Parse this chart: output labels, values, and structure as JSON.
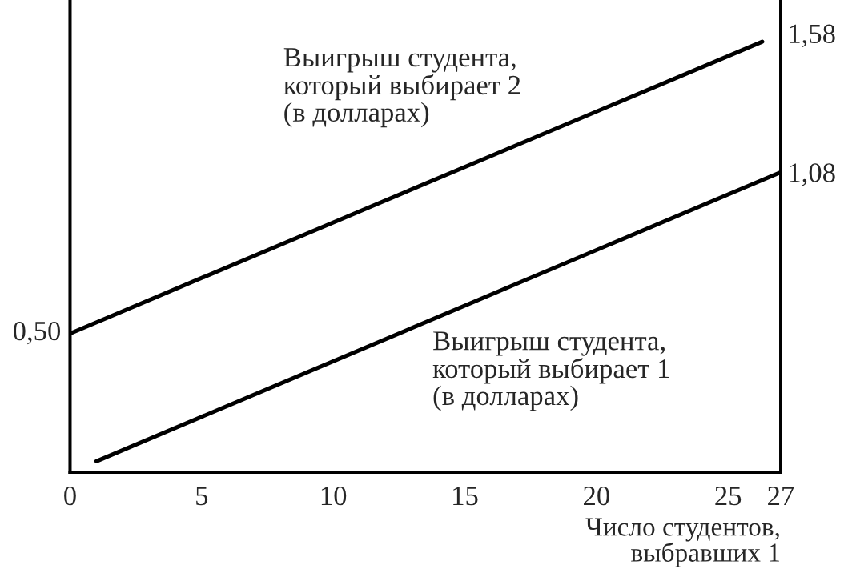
{
  "chart_data": {
    "type": "line",
    "xlabel": "Число студентов,\nвыбравших 1",
    "xlim": [
      0,
      27
    ],
    "xticks": [
      0,
      5,
      10,
      15,
      20,
      25,
      27
    ],
    "y2lim": [
      0,
      1.7
    ],
    "y2ticks": [
      {
        "value": 1.58,
        "label": "1,58"
      },
      {
        "value": 1.08,
        "label": "1,08"
      }
    ],
    "annotations": [
      "0,50"
    ],
    "series": [
      {
        "name": "Выигрыш студента,\nкоторый выбирает 2\n(в долларах)",
        "color": "#000000",
        "axis": "y2",
        "x": [
          0,
          26.3
        ],
        "values": [
          0.5,
          1.55
        ]
      },
      {
        "name": "Выигрыш студента,\nкоторый выбирает 1\n(в долларах)",
        "color": "#000000",
        "axis": "y2",
        "x": [
          1,
          27
        ],
        "values": [
          0.04,
          1.08
        ]
      }
    ],
    "grid": false,
    "legend": false,
    "marker": "none",
    "line_style": "solid"
  }
}
